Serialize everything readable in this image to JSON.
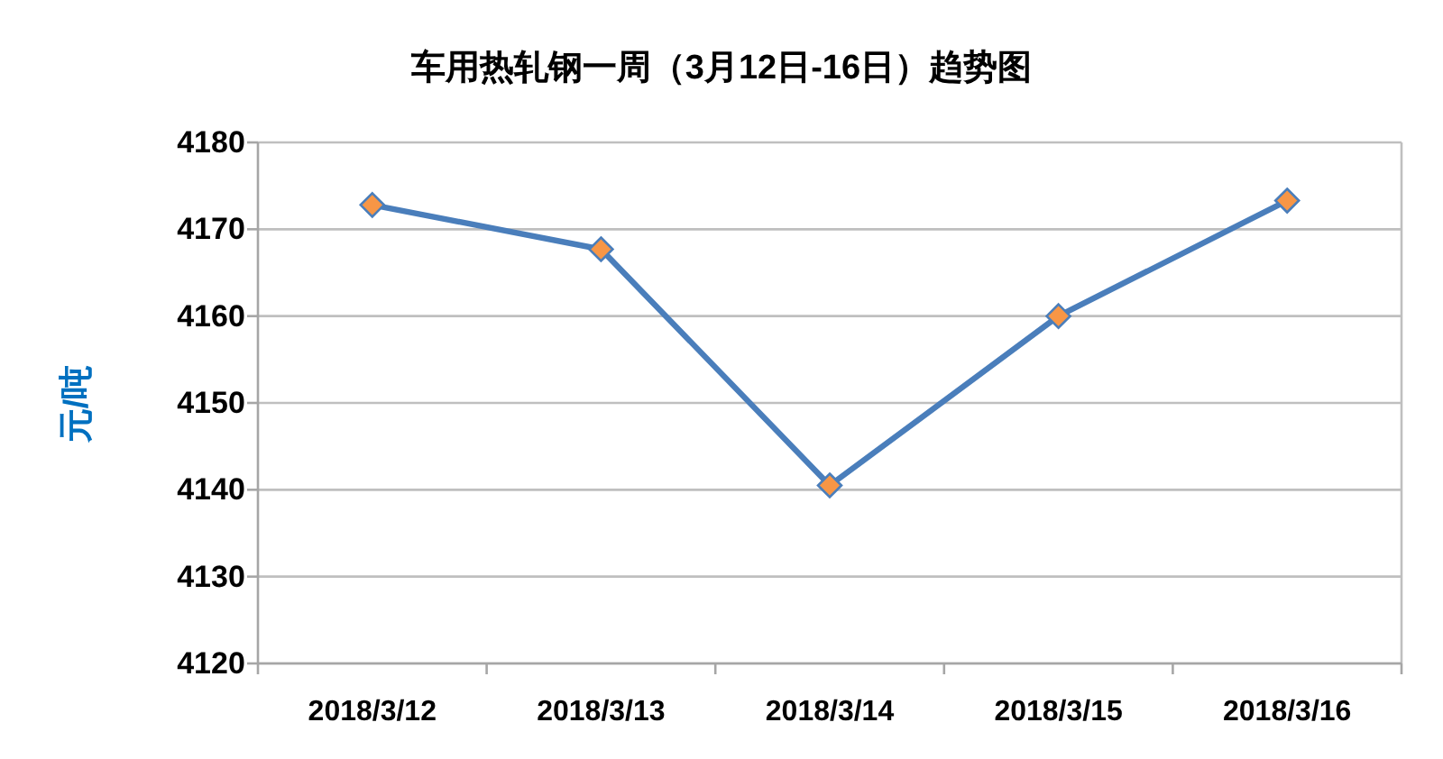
{
  "chart_data": {
    "type": "line",
    "title": "车用热轧钢一周（3月12日-16日）趋势图",
    "ylabel": "元/吨",
    "categories": [
      "2018/3/12",
      "2018/3/13",
      "2018/3/14",
      "2018/3/15",
      "2018/3/16"
    ],
    "series": [
      {
        "color": "#4a7ebb",
        "colors": [
          "#f79646",
          "#f79646",
          "#f79646",
          "#f79646",
          "#f79646"
        ],
        "values": [
          4172.8,
          4167.7,
          4140.5,
          4160,
          4173.3
        ]
      }
    ],
    "ylim": [
      4120,
      4180
    ],
    "yticks": [
      4120,
      4130,
      4140,
      4150,
      4160,
      4170,
      4180
    ],
    "grid": "y",
    "marker": "diamond",
    "line_style": "solid"
  }
}
